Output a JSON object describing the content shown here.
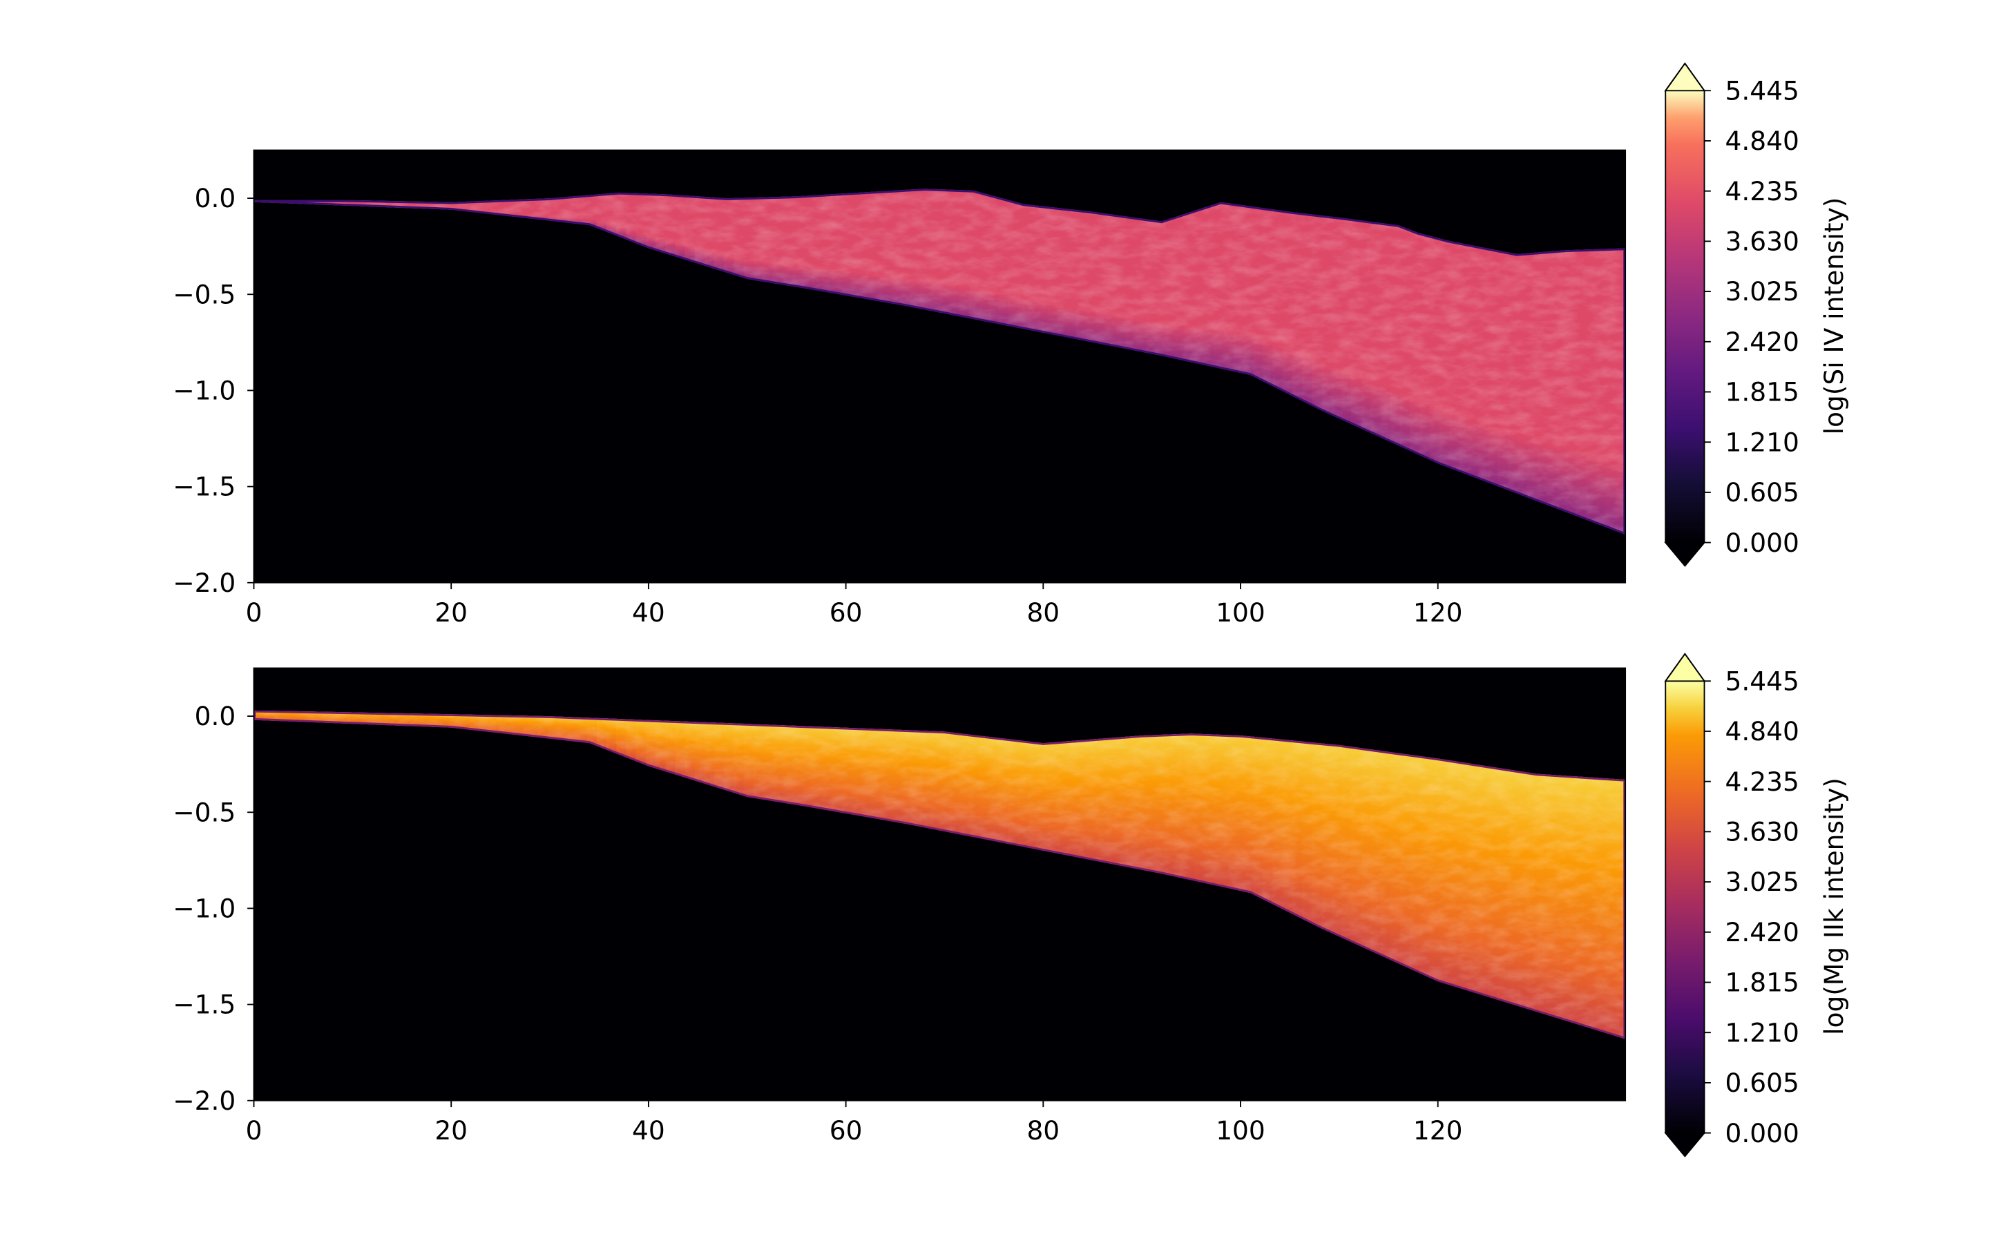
{
  "chart_data": [
    {
      "type": "heatmap",
      "title": "",
      "xlabel": "",
      "ylabel": "",
      "xlim": [
        0,
        139
      ],
      "ylim": [
        -2.0,
        0.25
      ],
      "xticks": [
        "0",
        "20",
        "40",
        "60",
        "80",
        "100",
        "120"
      ],
      "yticks": [
        "0.0",
        "−0.5",
        "−1.0",
        "−1.5",
        "−2.0"
      ],
      "colormap": "magma",
      "colorbar": {
        "label": "log(Si IV intensity)",
        "ticks": [
          "0.000",
          "0.605",
          "1.210",
          "1.815",
          "2.420",
          "3.025",
          "3.630",
          "4.235",
          "4.840",
          "5.445"
        ],
        "range": [
          0.0,
          5.445
        ],
        "extend": "both"
      },
      "lower_boundary": [
        [
          0,
          -0.02
        ],
        [
          20,
          -0.06
        ],
        [
          34,
          -0.14
        ],
        [
          40,
          -0.26
        ],
        [
          50,
          -0.42
        ],
        [
          56,
          -0.47
        ],
        [
          66,
          -0.56
        ],
        [
          80,
          -0.7
        ],
        [
          92,
          -0.82
        ],
        [
          101,
          -0.92
        ],
        [
          108,
          -1.1
        ],
        [
          120,
          -1.38
        ],
        [
          139,
          -1.75
        ]
      ],
      "upper_boundary": [
        [
          0,
          -0.01
        ],
        [
          10,
          -0.01
        ],
        [
          20,
          -0.02
        ],
        [
          30,
          0.0
        ],
        [
          37,
          0.03
        ],
        [
          42,
          0.02
        ],
        [
          48,
          0.0
        ],
        [
          55,
          0.01
        ],
        [
          68,
          0.05
        ],
        [
          73,
          0.04
        ],
        [
          78,
          -0.03
        ],
        [
          85,
          -0.07
        ],
        [
          92,
          -0.12
        ],
        [
          98,
          -0.02
        ],
        [
          105,
          -0.07
        ],
        [
          110,
          -0.1
        ],
        [
          116,
          -0.14
        ],
        [
          118,
          -0.18
        ],
        [
          121,
          -0.22
        ],
        [
          128,
          -0.29
        ],
        [
          133,
          -0.27
        ],
        [
          139,
          -0.26
        ]
      ],
      "mean_level": 4.3,
      "edge_level": 3.0
    },
    {
      "type": "heatmap",
      "title": "",
      "xlabel": "",
      "ylabel": "",
      "xlim": [
        0,
        139
      ],
      "ylim": [
        -2.0,
        0.25
      ],
      "xticks": [
        "0",
        "20",
        "40",
        "60",
        "80",
        "100",
        "120"
      ],
      "yticks": [
        "0.0",
        "−0.5",
        "−1.0",
        "−1.5",
        "−2.0"
      ],
      "colormap": "inferno",
      "colorbar": {
        "label": "log(Mg IIk intensity)",
        "ticks": [
          "0.000",
          "0.605",
          "1.210",
          "1.815",
          "2.420",
          "3.025",
          "3.630",
          "4.235",
          "4.840",
          "5.445"
        ],
        "range": [
          0.0,
          5.445
        ],
        "extend": "both"
      },
      "lower_boundary": [
        [
          0,
          -0.02
        ],
        [
          20,
          -0.06
        ],
        [
          34,
          -0.14
        ],
        [
          40,
          -0.26
        ],
        [
          50,
          -0.42
        ],
        [
          56,
          -0.47
        ],
        [
          66,
          -0.56
        ],
        [
          80,
          -0.7
        ],
        [
          92,
          -0.82
        ],
        [
          101,
          -0.92
        ],
        [
          108,
          -1.1
        ],
        [
          120,
          -1.38
        ],
        [
          139,
          -1.68
        ]
      ],
      "upper_boundary": [
        [
          0,
          0.03
        ],
        [
          10,
          0.02
        ],
        [
          20,
          0.01
        ],
        [
          30,
          0.0
        ],
        [
          40,
          -0.02
        ],
        [
          50,
          -0.04
        ],
        [
          60,
          -0.06
        ],
        [
          70,
          -0.08
        ],
        [
          80,
          -0.14
        ],
        [
          90,
          -0.1
        ],
        [
          95,
          -0.09
        ],
        [
          100,
          -0.1
        ],
        [
          110,
          -0.15
        ],
        [
          120,
          -0.22
        ],
        [
          130,
          -0.3
        ],
        [
          139,
          -0.33
        ]
      ],
      "mean_level": 4.9,
      "edge_level": 3.9
    }
  ]
}
